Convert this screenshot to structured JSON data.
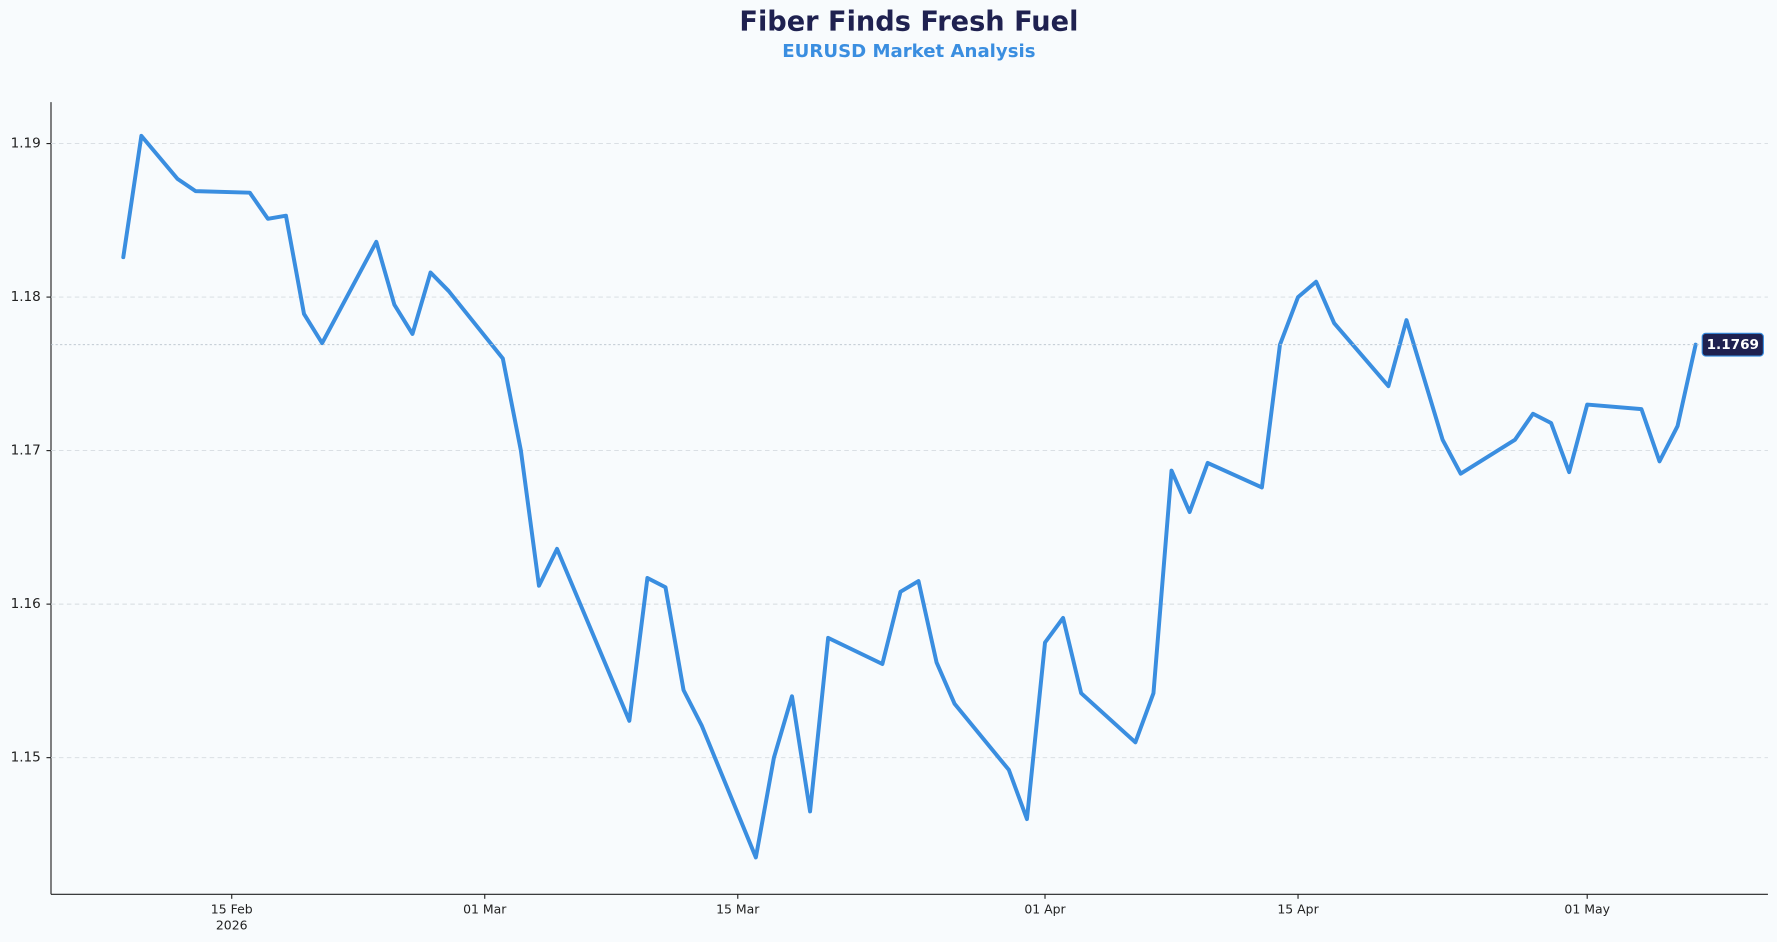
{
  "chart_data": {
    "type": "line",
    "title": "Fiber Finds Fresh Fuel",
    "subtitle": "EURUSD Market Analysis",
    "x": [
      "2026-02-09",
      "2026-02-10",
      "2026-02-11",
      "2026-02-12",
      "2026-02-13",
      "2026-02-16",
      "2026-02-17",
      "2026-02-18",
      "2026-02-19",
      "2026-02-20",
      "2026-02-23",
      "2026-02-24",
      "2026-02-25",
      "2026-02-26",
      "2026-02-27",
      "2026-03-02",
      "2026-03-03",
      "2026-03-04",
      "2026-03-05",
      "2026-03-06",
      "2026-03-09",
      "2026-03-10",
      "2026-03-11",
      "2026-03-12",
      "2026-03-13",
      "2026-03-16",
      "2026-03-17",
      "2026-03-18",
      "2026-03-19",
      "2026-03-20",
      "2026-03-23",
      "2026-03-24",
      "2026-03-25",
      "2026-03-26",
      "2026-03-27",
      "2026-03-30",
      "2026-03-31",
      "2026-04-01",
      "2026-04-02",
      "2026-04-03",
      "2026-04-06",
      "2026-04-07",
      "2026-04-08",
      "2026-04-09",
      "2026-04-10",
      "2026-04-13",
      "2026-04-14",
      "2026-04-15",
      "2026-04-16",
      "2026-04-17",
      "2026-04-20",
      "2026-04-21",
      "2026-04-22",
      "2026-04-23",
      "2026-04-24",
      "2026-04-27",
      "2026-04-28",
      "2026-04-29",
      "2026-04-30",
      "2026-05-01",
      "2026-05-04",
      "2026-05-05",
      "2026-05-06",
      "2026-05-07"
    ],
    "series": [
      {
        "name": "EURUSD",
        "color": "#3a8ee0",
        "values": [
          1.1826,
          1.1905,
          1.1891,
          1.1877,
          1.1869,
          1.1868,
          1.1851,
          1.1853,
          1.1789,
          1.177,
          1.1836,
          1.1795,
          1.1776,
          1.1816,
          1.1804,
          1.176,
          1.17,
          1.1612,
          1.1636,
          1.1608,
          1.1524,
          1.1617,
          1.1611,
          1.1544,
          1.1521,
          1.1435,
          1.15,
          1.154,
          1.1465,
          1.1578,
          1.1561,
          1.1608,
          1.1615,
          1.1562,
          1.1535,
          1.1492,
          1.146,
          1.1575,
          1.1591,
          1.1542,
          1.151,
          1.1542,
          1.1687,
          1.166,
          1.1692,
          1.1676,
          1.1769,
          1.18,
          1.181,
          1.1783,
          1.1742,
          1.1785,
          1.1746,
          1.1707,
          1.1685,
          1.1707,
          1.1724,
          1.1718,
          1.1686,
          1.173,
          1.1727,
          1.1693,
          1.1716,
          1.1769
        ]
      }
    ],
    "last_label": {
      "value": 1.1769,
      "label": "1.1769"
    },
    "xlim": [
      "2026-02-05",
      "2026-05-11"
    ],
    "xticks": [
      {
        "value": "2026-02-15",
        "label": "15 Feb",
        "year": "2026"
      },
      {
        "value": "2026-03-01",
        "label": "01 Mar"
      },
      {
        "value": "2026-03-15",
        "label": "15 Mar"
      },
      {
        "value": "2026-04-01",
        "label": "01 Apr"
      },
      {
        "value": "2026-04-15",
        "label": "15 Apr"
      },
      {
        "value": "2026-05-01",
        "label": "01 May"
      }
    ],
    "ylim": [
      1.1411,
      1.1927
    ],
    "yticks": [
      1.15,
      1.16,
      1.17,
      1.18,
      1.19
    ],
    "grid": true
  }
}
